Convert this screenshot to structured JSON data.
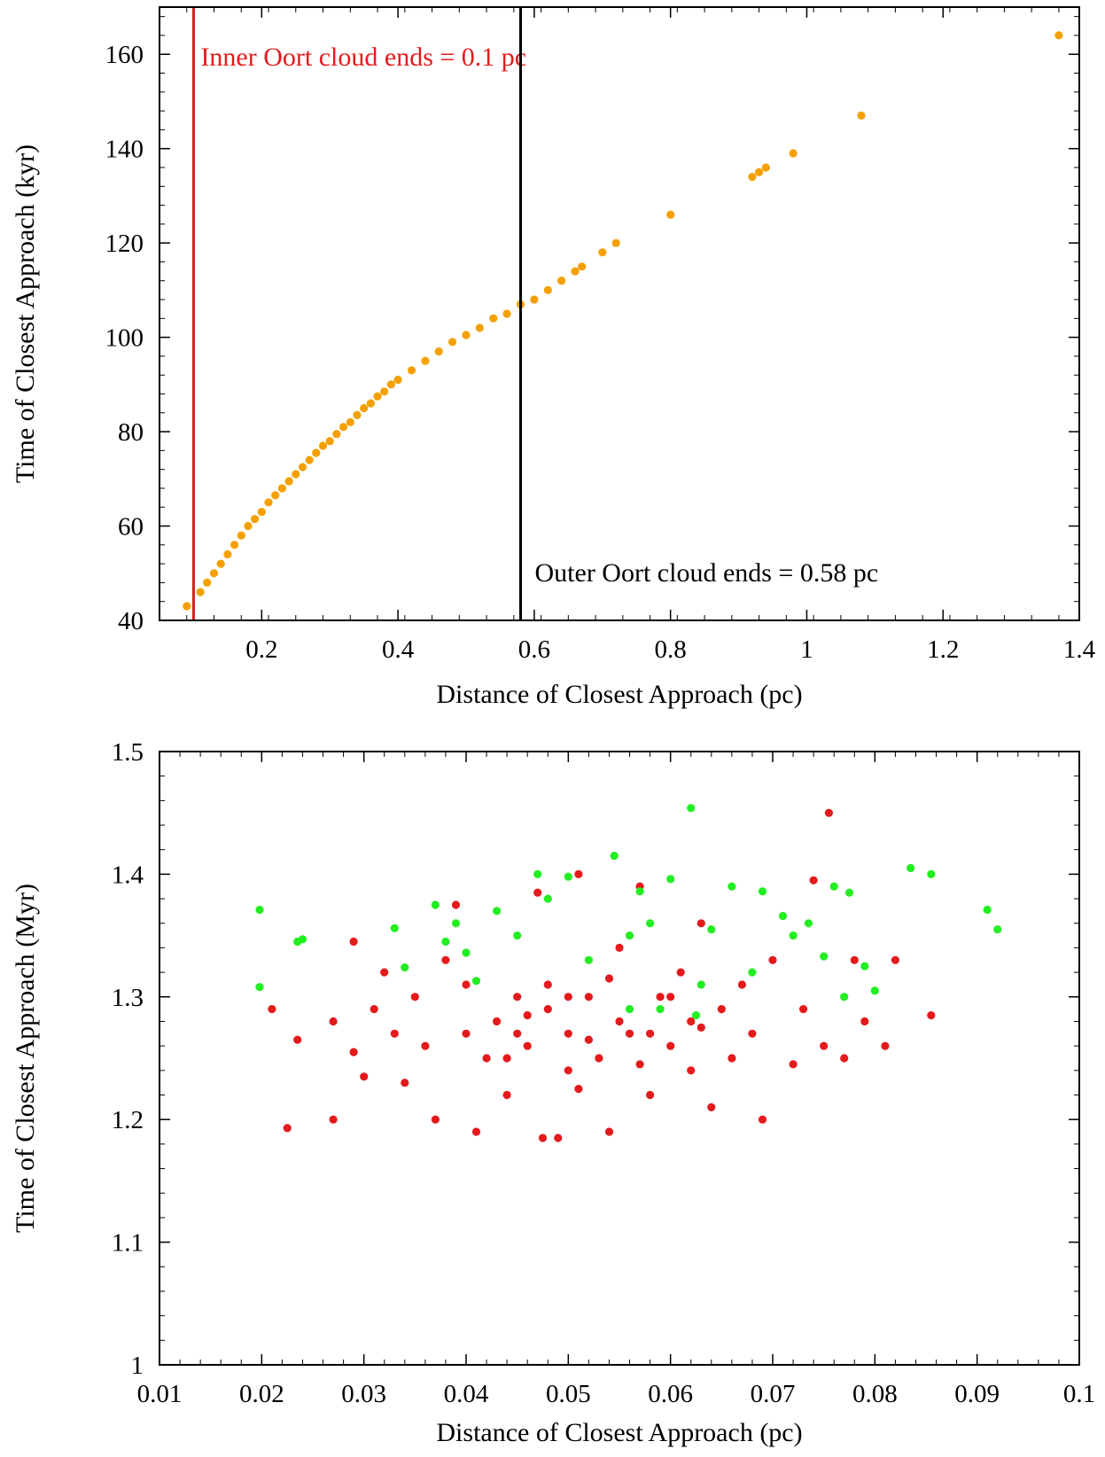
{
  "chart_data": [
    {
      "type": "scatter",
      "xlabel": "Distance of Closest Approach (pc)",
      "ylabel": "Time of Closest Approach (kyr)",
      "xlim": [
        0.05,
        1.4
      ],
      "ylim": [
        40,
        170
      ],
      "xticks": [
        0.2,
        0.4,
        0.6,
        0.8,
        1,
        1.2,
        1.4
      ],
      "xtick_labels": [
        "0.2",
        "0.4",
        "0.6",
        "0.8",
        "1",
        "1.2",
        "1.4"
      ],
      "yticks": [
        40,
        60,
        80,
        100,
        120,
        140,
        160
      ],
      "ytick_labels": [
        "40",
        "60",
        "80",
        "100",
        "120",
        "140",
        "160"
      ],
      "grid": false,
      "reference_lines": [
        {
          "x": 0.1,
          "color": "#e41a1c",
          "label": "Inner Oort cloud ends = 0.1 pc"
        },
        {
          "x": 0.58,
          "color": "#000000",
          "label": "Outer Oort cloud ends = 0.58 pc"
        }
      ],
      "series": [
        {
          "color": "#f5a000",
          "points": [
            [
              0.09,
              43
            ],
            [
              0.11,
              46
            ],
            [
              0.12,
              48
            ],
            [
              0.13,
              50
            ],
            [
              0.14,
              52
            ],
            [
              0.15,
              54
            ],
            [
              0.16,
              56
            ],
            [
              0.17,
              58
            ],
            [
              0.18,
              60
            ],
            [
              0.19,
              61.5
            ],
            [
              0.2,
              63
            ],
            [
              0.21,
              65
            ],
            [
              0.22,
              66.5
            ],
            [
              0.23,
              68
            ],
            [
              0.24,
              69.5
            ],
            [
              0.25,
              71
            ],
            [
              0.26,
              72.5
            ],
            [
              0.27,
              74
            ],
            [
              0.28,
              75.5
            ],
            [
              0.29,
              77
            ],
            [
              0.3,
              78
            ],
            [
              0.31,
              79.5
            ],
            [
              0.32,
              81
            ],
            [
              0.33,
              82
            ],
            [
              0.34,
              83.5
            ],
            [
              0.35,
              85
            ],
            [
              0.36,
              86
            ],
            [
              0.37,
              87.5
            ],
            [
              0.38,
              88.5
            ],
            [
              0.39,
              90
            ],
            [
              0.4,
              91
            ],
            [
              0.42,
              93
            ],
            [
              0.44,
              95
            ],
            [
              0.46,
              97
            ],
            [
              0.48,
              99
            ],
            [
              0.5,
              100.5
            ],
            [
              0.52,
              102
            ],
            [
              0.54,
              104
            ],
            [
              0.56,
              105
            ],
            [
              0.58,
              107
            ],
            [
              0.6,
              108
            ],
            [
              0.62,
              110
            ],
            [
              0.64,
              112
            ],
            [
              0.66,
              114
            ],
            [
              0.67,
              115
            ],
            [
              0.7,
              118
            ],
            [
              0.72,
              120
            ],
            [
              0.8,
              126
            ],
            [
              0.92,
              134
            ],
            [
              0.93,
              135
            ],
            [
              0.94,
              136
            ],
            [
              0.98,
              139
            ],
            [
              1.08,
              147
            ],
            [
              1.37,
              164
            ]
          ]
        }
      ]
    },
    {
      "type": "scatter",
      "xlabel": "Distance of Closest Approach (pc)",
      "ylabel": "Time of Closest Approach (Myr)",
      "xlim": [
        0.01,
        0.1
      ],
      "ylim": [
        1,
        1.5
      ],
      "xticks": [
        0.01,
        0.02,
        0.03,
        0.04,
        0.05,
        0.06,
        0.07,
        0.08,
        0.09,
        0.1
      ],
      "xtick_labels": [
        "0.01",
        "0.02",
        "0.03",
        "0.04",
        "0.05",
        "0.06",
        "0.07",
        "0.08",
        "0.09",
        "0.1"
      ],
      "yticks": [
        1,
        1.1,
        1.2,
        1.3,
        1.4,
        1.5
      ],
      "ytick_labels": [
        "1",
        "1.1",
        "1.2",
        "1.3",
        "1.4",
        "1.5"
      ],
      "grid": false,
      "series": [
        {
          "color": "#e41a1c",
          "points": [
            [
              0.0225,
              1.193
            ],
            [
              0.027,
              1.2
            ],
            [
              0.021,
              1.29
            ],
            [
              0.0235,
              1.265
            ],
            [
              0.027,
              1.28
            ],
            [
              0.029,
              1.345
            ],
            [
              0.029,
              1.255
            ],
            [
              0.03,
              1.235
            ],
            [
              0.031,
              1.29
            ],
            [
              0.032,
              1.32
            ],
            [
              0.033,
              1.27
            ],
            [
              0.034,
              1.23
            ],
            [
              0.035,
              1.3
            ],
            [
              0.036,
              1.26
            ],
            [
              0.037,
              1.2
            ],
            [
              0.038,
              1.33
            ],
            [
              0.039,
              1.375
            ],
            [
              0.04,
              1.31
            ],
            [
              0.041,
              1.19
            ],
            [
              0.042,
              1.25
            ],
            [
              0.043,
              1.28
            ],
            [
              0.044,
              1.22
            ],
            [
              0.045,
              1.3
            ],
            [
              0.046,
              1.26
            ],
            [
              0.047,
              1.385
            ],
            [
              0.0475,
              1.185
            ],
            [
              0.048,
              1.29
            ],
            [
              0.049,
              1.185
            ],
            [
              0.05,
              1.27
            ],
            [
              0.051,
              1.4
            ],
            [
              0.052,
              1.3
            ],
            [
              0.053,
              1.25
            ],
            [
              0.054,
              1.19
            ],
            [
              0.055,
              1.34
            ],
            [
              0.056,
              1.27
            ],
            [
              0.057,
              1.39
            ],
            [
              0.058,
              1.22
            ],
            [
              0.059,
              1.3
            ],
            [
              0.06,
              1.26
            ],
            [
              0.061,
              1.32
            ],
            [
              0.062,
              1.28
            ],
            [
              0.063,
              1.36
            ],
            [
              0.064,
              1.21
            ],
            [
              0.065,
              1.29
            ],
            [
              0.066,
              1.25
            ],
            [
              0.067,
              1.31
            ],
            [
              0.068,
              1.27
            ],
            [
              0.069,
              1.2
            ],
            [
              0.07,
              1.33
            ],
            [
              0.072,
              1.245
            ],
            [
              0.073,
              1.29
            ],
            [
              0.074,
              1.395
            ],
            [
              0.075,
              1.26
            ],
            [
              0.0755,
              1.45
            ],
            [
              0.077,
              1.25
            ],
            [
              0.078,
              1.33
            ],
            [
              0.079,
              1.28
            ],
            [
              0.081,
              1.26
            ],
            [
              0.082,
              1.33
            ],
            [
              0.0855,
              1.285
            ],
            [
              0.045,
              1.27
            ],
            [
              0.05,
              1.24
            ],
            [
              0.055,
              1.28
            ],
            [
              0.06,
              1.3
            ],
            [
              0.052,
              1.265
            ],
            [
              0.048,
              1.31
            ],
            [
              0.058,
              1.27
            ],
            [
              0.044,
              1.25
            ],
            [
              0.062,
              1.24
            ],
            [
              0.05,
              1.3
            ],
            [
              0.046,
              1.285
            ],
            [
              0.054,
              1.315
            ],
            [
              0.04,
              1.27
            ],
            [
              0.057,
              1.245
            ],
            [
              0.063,
              1.275
            ],
            [
              0.051,
              1.225
            ]
          ]
        },
        {
          "color": "#22ee22",
          "points": [
            [
              0.0198,
              1.371
            ],
            [
              0.0198,
              1.308
            ],
            [
              0.0235,
              1.345
            ],
            [
              0.024,
              1.347
            ],
            [
              0.033,
              1.356
            ],
            [
              0.034,
              1.324
            ],
            [
              0.037,
              1.375
            ],
            [
              0.038,
              1.345
            ],
            [
              0.039,
              1.36
            ],
            [
              0.04,
              1.336
            ],
            [
              0.041,
              1.313
            ],
            [
              0.043,
              1.37
            ],
            [
              0.045,
              1.35
            ],
            [
              0.047,
              1.4
            ],
            [
              0.048,
              1.38
            ],
            [
              0.05,
              1.398
            ],
            [
              0.052,
              1.33
            ],
            [
              0.0545,
              1.415
            ],
            [
              0.056,
              1.35
            ],
            [
              0.057,
              1.386
            ],
            [
              0.058,
              1.36
            ],
            [
              0.059,
              1.29
            ],
            [
              0.06,
              1.396
            ],
            [
              0.062,
              1.454
            ],
            [
              0.063,
              1.31
            ],
            [
              0.064,
              1.355
            ],
            [
              0.066,
              1.39
            ],
            [
              0.068,
              1.32
            ],
            [
              0.069,
              1.386
            ],
            [
              0.071,
              1.366
            ],
            [
              0.072,
              1.35
            ],
            [
              0.0735,
              1.36
            ],
            [
              0.075,
              1.333
            ],
            [
              0.076,
              1.39
            ],
            [
              0.077,
              1.3
            ],
            [
              0.0775,
              1.385
            ],
            [
              0.079,
              1.325
            ],
            [
              0.08,
              1.305
            ],
            [
              0.0835,
              1.405
            ],
            [
              0.0855,
              1.4
            ],
            [
              0.091,
              1.371
            ],
            [
              0.092,
              1.355
            ],
            [
              0.056,
              1.29
            ],
            [
              0.0625,
              1.285
            ]
          ]
        }
      ]
    }
  ]
}
